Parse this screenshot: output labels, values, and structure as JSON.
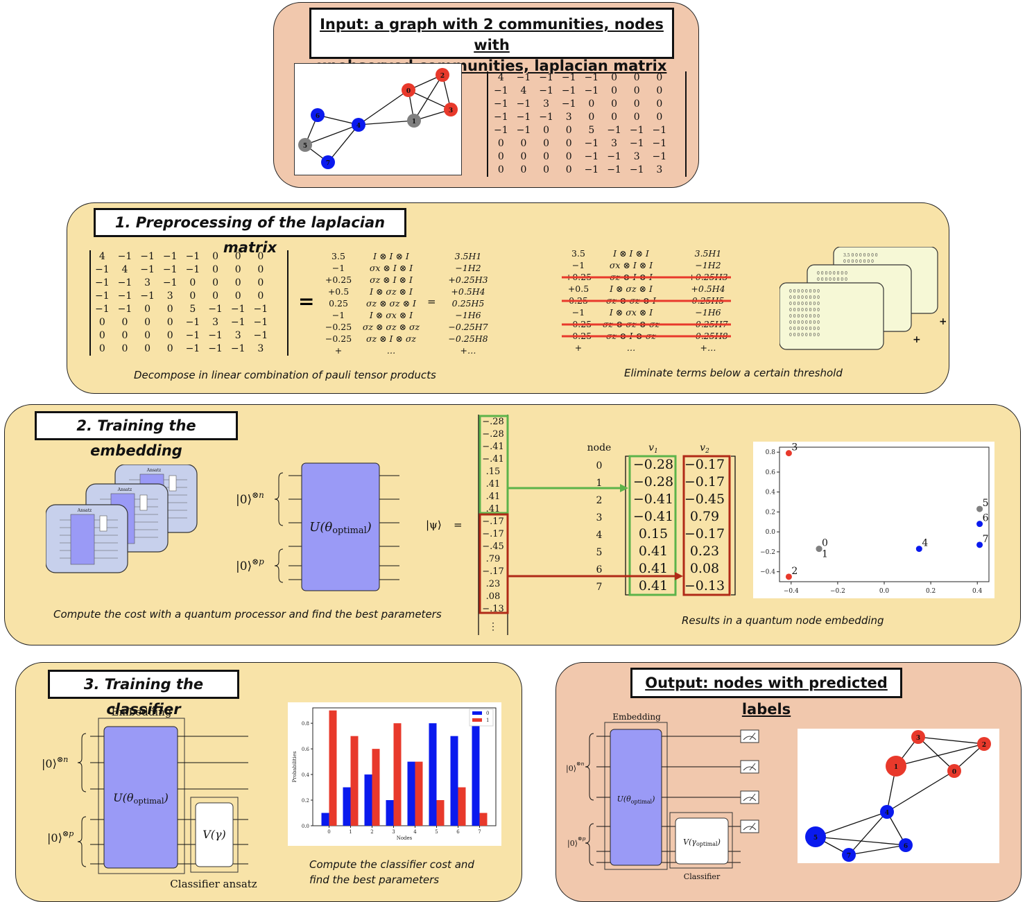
{
  "input": {
    "title_line1": "Input: a graph with 2 communities, nodes with",
    "title_line2": "unobserved communities, laplacian matrix",
    "graph_nodes": [
      "0",
      "1",
      "2",
      "3",
      "4",
      "5",
      "6",
      "7"
    ],
    "laplacian": [
      [
        "4",
        "−1",
        "−1",
        "−1",
        "−1",
        "0",
        "0",
        "0"
      ],
      [
        "−1",
        "4",
        "−1",
        "−1",
        "−1",
        "0",
        "0",
        "0"
      ],
      [
        "−1",
        "−1",
        "3",
        "−1",
        "0",
        "0",
        "0",
        "0"
      ],
      [
        "−1",
        "−1",
        "−1",
        "3",
        "0",
        "0",
        "0",
        "0"
      ],
      [
        "−1",
        "−1",
        "0",
        "0",
        "5",
        "−1",
        "−1",
        "−1"
      ],
      [
        "0",
        "0",
        "0",
        "0",
        "−1",
        "3",
        "−1",
        "−1"
      ],
      [
        "0",
        "0",
        "0",
        "0",
        "−1",
        "−1",
        "3",
        "−1"
      ],
      [
        "0",
        "0",
        "0",
        "0",
        "−1",
        "−1",
        "−1",
        "3"
      ]
    ]
  },
  "step1": {
    "title": "1. Preprocessing of the laplacian matrix",
    "equals": "=",
    "coefficients": [
      "3.5",
      "−1",
      "+0.25",
      "+0.5",
      "0.25",
      "−1",
      "−0.25",
      "−0.25",
      "+"
    ],
    "paulis": [
      "I ⊗ I ⊗ I",
      "σx ⊗ I ⊗ I",
      "σz ⊗ I ⊗ I",
      "I ⊗ σz ⊗ I",
      "σz ⊗ σz ⊗ I",
      "I ⊗ σx ⊗ I",
      "σz ⊗ σz ⊗ σz",
      "σz ⊗ I ⊗ σz",
      "…"
    ],
    "terms": [
      "3.5H1",
      "−1H2",
      "+0.25H3",
      "+0.5H4",
      "0.25H5",
      "−1H6",
      "−0.25H7",
      "−0.25H8",
      "+…"
    ],
    "eliminated_rows": [
      2,
      4,
      6,
      7
    ],
    "caption_left": "Decompose in linear combination of pauli tensor products",
    "caption_right": "Eliminate terms below a certain threshold",
    "plus": "+",
    "card_first_row": "3.5"
  },
  "step2": {
    "title": "2. Training the embedding",
    "ket_n": "|0⟩⊗n",
    "ket_p": "|0⟩⊗p",
    "unitary": "U(θoptimal)",
    "psi": "|ψ⟩",
    "equals": "=",
    "ansatz_label": "Ansatz",
    "vector_green": [
      ".28",
      ".28",
      ".41",
      ".41",
      ".15",
      ".41",
      ".41",
      ".41"
    ],
    "vector_green_signs": [
      "−",
      "−",
      "−",
      "−",
      "",
      "",
      "",
      ""
    ],
    "vector_red": [
      ".17",
      ".17",
      ".45",
      ".79",
      ".17",
      ".23",
      ".08",
      ".13"
    ],
    "vector_red_signs": [
      "−",
      "−",
      "−",
      "",
      "−",
      "",
      "",
      "−"
    ],
    "vdots": "⋮",
    "table_header_node": "node",
    "table_header_v1": "v1",
    "table_header_v2": "v2",
    "nodes": [
      "0",
      "1",
      "2",
      "3",
      "4",
      "5",
      "6",
      "7"
    ],
    "v1": [
      "−0.28",
      "−0.28",
      "−0.41",
      "−0.41",
      "0.15",
      "0.41",
      "0.41",
      "0.41"
    ],
    "v2": [
      "−0.17",
      "−0.17",
      "−0.45",
      "0.79",
      "−0.17",
      "0.23",
      "0.08",
      "−0.13"
    ],
    "caption_left": "Compute the cost with a quantum processor and find the best parameters",
    "caption_right": "Results in a quantum node embedding"
  },
  "step3": {
    "title": "3. Training the classifier",
    "embedding_label": "Embedding",
    "ket_n": "|0⟩⊗n",
    "ket_p": "|0⟩⊗p",
    "unitary": "U(θoptimal)",
    "vgamma": "V(γ)",
    "ansatz_label": "Classifier ansatz",
    "caption_line1": "Compute the classifier cost and",
    "caption_line2": "find the best parameters"
  },
  "output": {
    "title": "Output: nodes with predicted labels",
    "embedding_label": "Embedding",
    "ket_n": "|0⟩⊗n",
    "ket_p": "|0⟩⊗p",
    "unitary": "U(θoptimal)",
    "vgamma": "V(γoptimal)",
    "classifier_label": "Classifier",
    "graph_nodes": [
      "0",
      "1",
      "2",
      "3",
      "4",
      "5",
      "6",
      "7"
    ]
  },
  "colors": {
    "red": "#e8392b",
    "blue": "#0a1aee",
    "grey": "#808080",
    "green": "#5cb34a",
    "darkred": "#b02a17",
    "purple": "#9a9af6",
    "peach": "#f1c8ad",
    "yellow": "#f8e3a8"
  },
  "chart_data": [
    {
      "type": "scatter",
      "x": [
        -0.28,
        -0.28,
        -0.41,
        -0.41,
        0.15,
        0.41,
        0.41,
        0.41
      ],
      "y": [
        -0.17,
        -0.17,
        -0.45,
        0.79,
        -0.17,
        0.23,
        0.08,
        -0.13
      ],
      "point_labels": [
        "0",
        "1",
        "2",
        "3",
        "4",
        "5",
        "6",
        "7"
      ],
      "point_colors": [
        "grey",
        "grey",
        "red",
        "red",
        "blue",
        "grey",
        "blue",
        "blue"
      ],
      "xticks": [
        "−0.4",
        "−0.2",
        "0.0",
        "0.2",
        "0.4"
      ],
      "yticks": [
        "−0.4",
        "−0.2",
        "0.0",
        "0.2",
        "0.4",
        "0.6",
        "0.8"
      ],
      "xlim": [
        -0.45,
        0.45
      ],
      "ylim": [
        -0.5,
        0.85
      ]
    },
    {
      "type": "bar",
      "categories": [
        "0",
        "1",
        "2",
        "3",
        "4",
        "5",
        "6",
        "7"
      ],
      "series": [
        {
          "name": "0",
          "values": [
            0.1,
            0.3,
            0.4,
            0.2,
            0.5,
            0.8,
            0.7,
            0.9
          ]
        },
        {
          "name": "1",
          "values": [
            0.9,
            0.7,
            0.6,
            0.8,
            0.5,
            0.2,
            0.3,
            0.1
          ]
        }
      ],
      "xlabel": "Nodes",
      "ylabel": "Probabilities",
      "yticks": [
        "0.0",
        "0.2",
        "0.4",
        "0.6",
        "0.8"
      ],
      "ylim": [
        0,
        0.92
      ],
      "legend": "top-right"
    }
  ]
}
